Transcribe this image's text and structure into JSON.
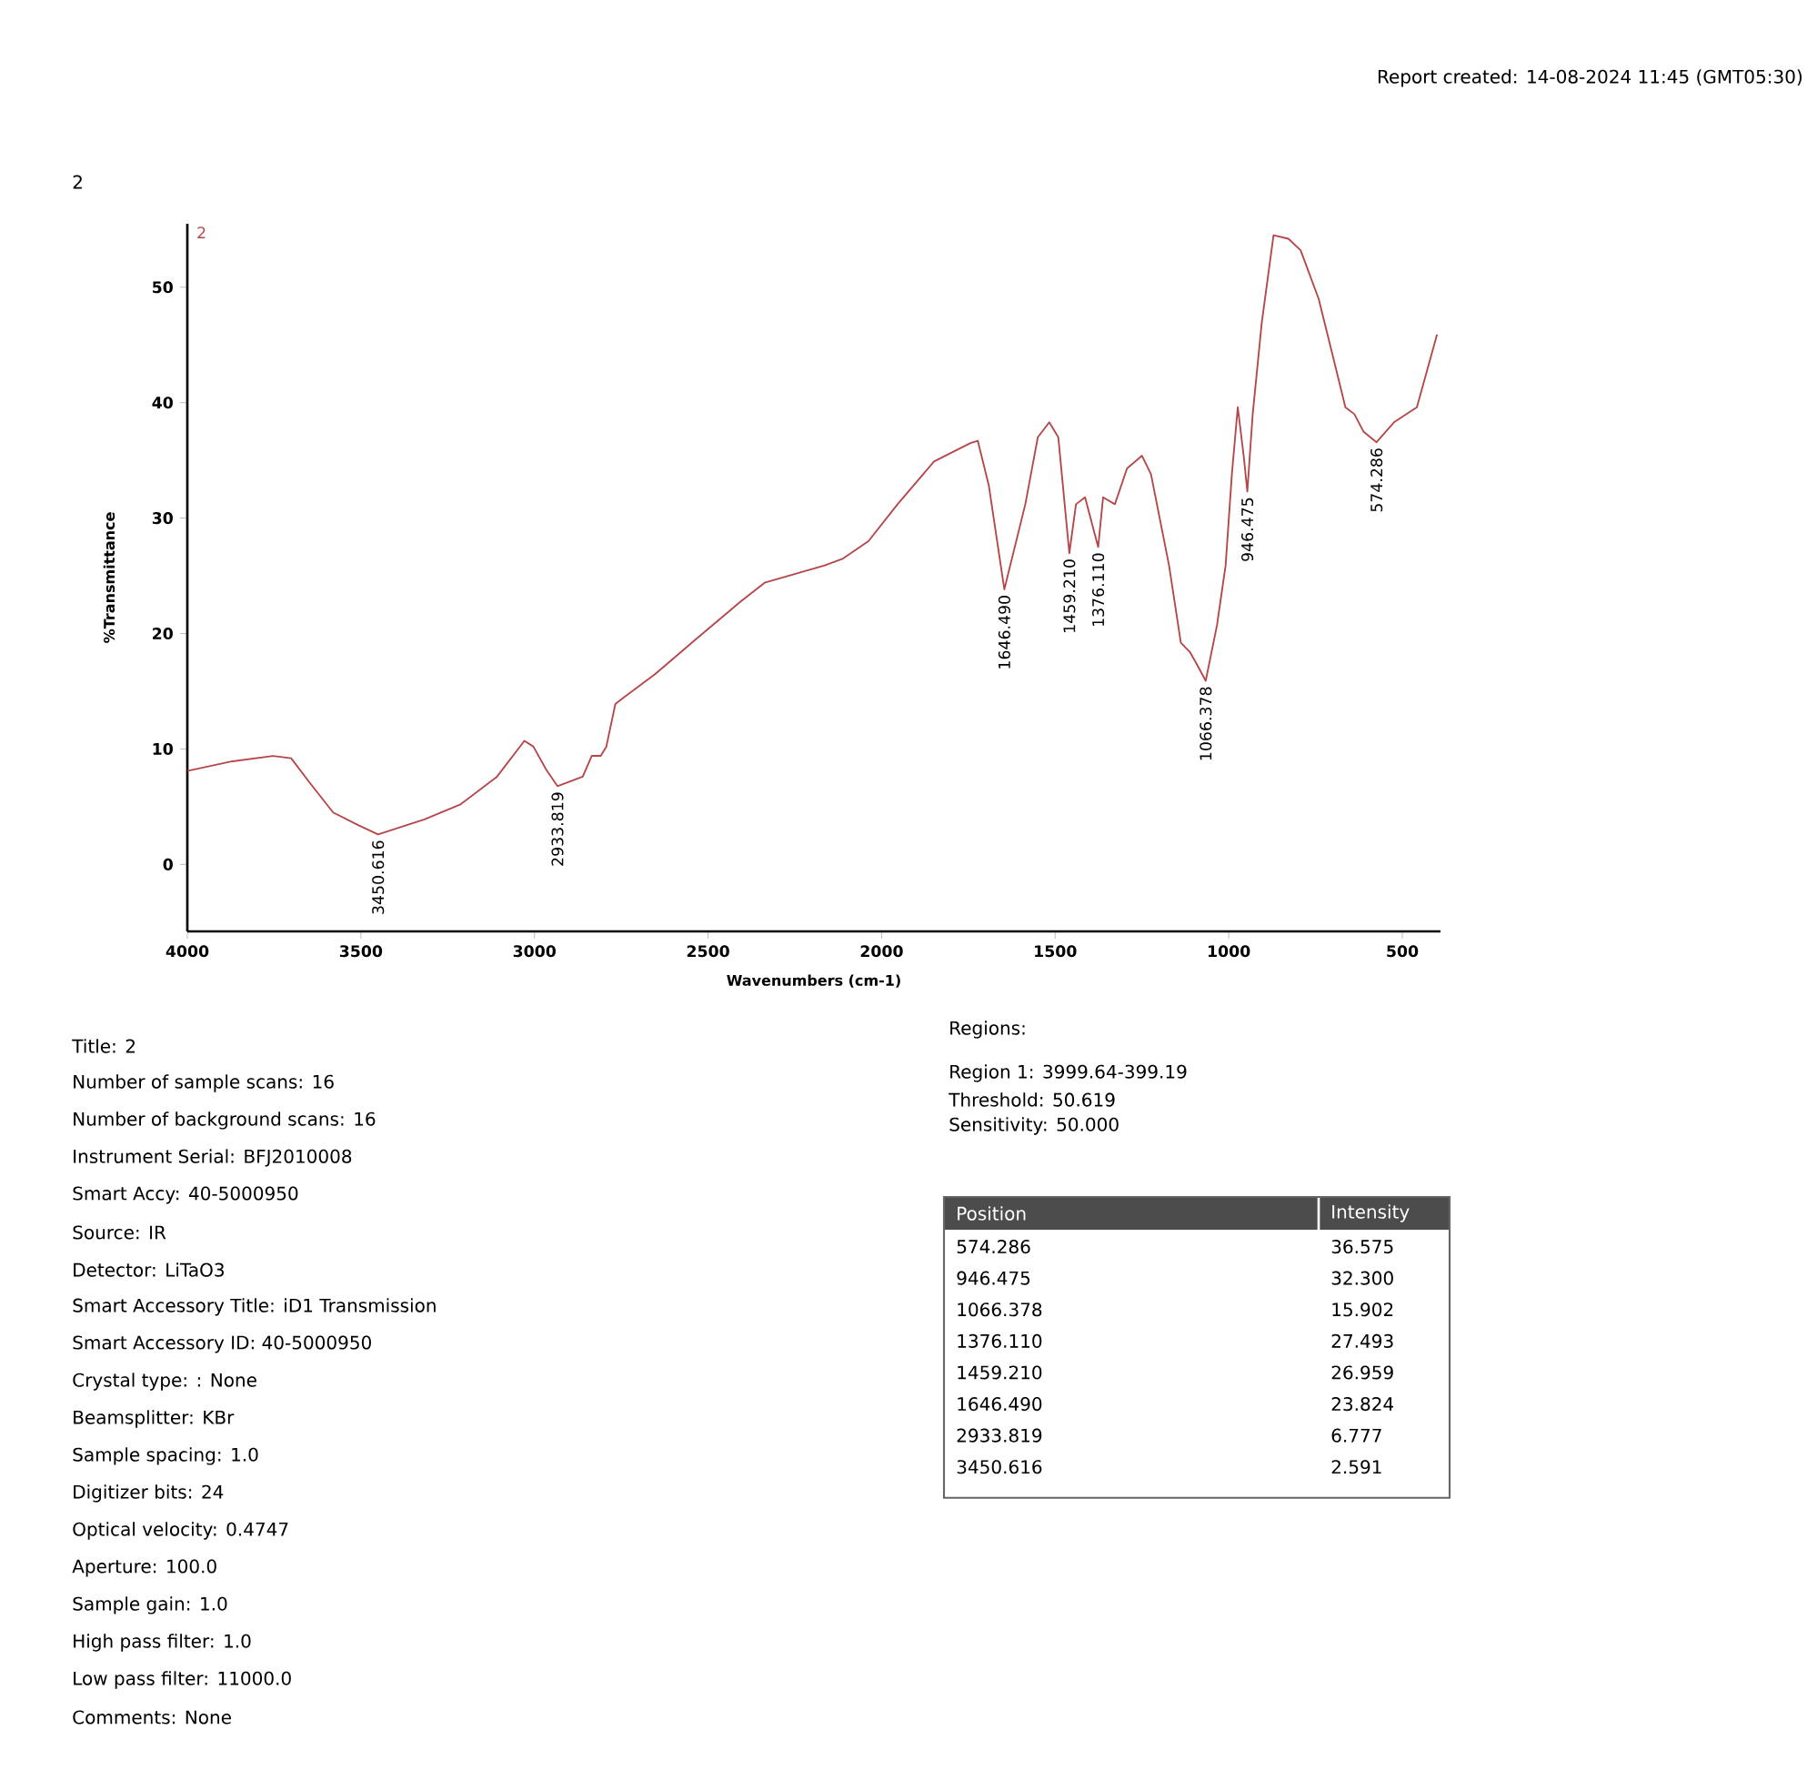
{
  "chart_data": {
    "type": "line",
    "title": "2",
    "xlabel": "Wavenumbers (cm-1)",
    "ylabel": "%Transmittance",
    "xlim": [
      4000,
      390
    ],
    "xticks": [
      4000,
      3500,
      3000,
      2500,
      2000,
      1500,
      1000,
      500
    ],
    "ylim": [
      -5.8,
      55.5
    ],
    "yticks": [
      0,
      10,
      20,
      30,
      40,
      50
    ],
    "series": [
      {
        "name": "2",
        "color": "#b5474a",
        "x": [
          4000,
          3876,
          3753,
          3701,
          3648,
          3580,
          3508,
          3450.616,
          3317,
          3213,
          3108,
          3029,
          3003,
          2966,
          2933.819,
          2861,
          2835,
          2809,
          2793,
          2767,
          2741,
          2652,
          2547,
          2405,
          2337,
          2164,
          2111,
          2038,
          1954,
          1849,
          1744,
          1723,
          1691,
          1646.49,
          1586,
          1550,
          1517,
          1491,
          1459.21,
          1440,
          1414,
          1376.11,
          1362,
          1328,
          1293,
          1250,
          1224,
          1172,
          1138,
          1112,
          1095,
          1066.378,
          1034,
          1009,
          991,
          974,
          957,
          946.475,
          931,
          905,
          871,
          828,
          793,
          741,
          690,
          664,
          638,
          612,
          574.286,
          524,
          458,
          400
        ],
        "values": [
          8.1,
          8.9,
          9.4,
          9.2,
          7.1,
          4.5,
          3.4,
          2.591,
          3.9,
          5.2,
          7.6,
          10.7,
          10.2,
          8.2,
          6.777,
          7.6,
          9.4,
          9.4,
          10.2,
          13.9,
          14.5,
          16.5,
          19.2,
          22.8,
          24.4,
          25.9,
          26.5,
          28.0,
          31.2,
          34.9,
          36.5,
          36.7,
          32.8,
          23.824,
          31.2,
          37.0,
          38.3,
          37.0,
          26.959,
          31.2,
          31.8,
          27.493,
          31.8,
          31.2,
          34.3,
          35.4,
          33.8,
          25.9,
          19.2,
          18.4,
          17.5,
          15.902,
          20.7,
          25.9,
          33.8,
          39.6,
          35.4,
          32.3,
          39.0,
          46.9,
          54.5,
          54.2,
          53.2,
          49.0,
          42.8,
          39.6,
          39.0,
          37.5,
          36.575,
          38.3,
          39.6,
          45.9
        ]
      }
    ],
    "annotations": [
      {
        "text": "3450.616",
        "x": 3450.616,
        "y": 2.591
      },
      {
        "text": "2933.819",
        "x": 2933.819,
        "y": 6.777
      },
      {
        "text": "1646.490",
        "x": 1646.49,
        "y": 23.824
      },
      {
        "text": "1459.210",
        "x": 1459.21,
        "y": 26.959
      },
      {
        "text": "1376.110",
        "x": 1376.11,
        "y": 27.493
      },
      {
        "text": "1066.378",
        "x": 1066.378,
        "y": 15.902
      },
      {
        "text": "946.475",
        "x": 946.475,
        "y": 32.3
      },
      {
        "text": "574.286",
        "x": 574.286,
        "y": 36.575
      },
      "Report created: 14-08-2024 11:45 (GMT05:30)",
      "Title: 2",
      "Number of sample scans: 16",
      "Number of background scans: 16",
      "Instrument Serial: BFJ2010008",
      "Smart Accy: 40-5000950",
      "Source: IR",
      "Detector: LiTaO3",
      "Smart Accessory Title: iD1 Transmission",
      "Smart Accessory ID: 40-5000950",
      "Crystal type: : None",
      "Beamsplitter: KBr",
      "Sample spacing: 1.0",
      "Digitizer bits: 24",
      "Optical velocity: 0.4747",
      "Aperture: 100.0",
      "Sample gain: 1.0",
      "High pass filter: 1.0",
      "Low pass filter: 11000.0",
      "Comments: None",
      "Regions:",
      "Region 1: 3999.64-399.19",
      "Threshold: 50.619",
      "Sensitivity: 50.000",
      "Position",
      "Intensity",
      "574.286",
      "36.575",
      "946.475",
      "32.300",
      "1066.378",
      "15.902",
      "1376.110",
      "27.493",
      "1459.210",
      "26.959",
      "1646.490",
      "23.824",
      "2933.819",
      "6.777",
      "3450.616",
      "2.591"
    ]
  }
}
